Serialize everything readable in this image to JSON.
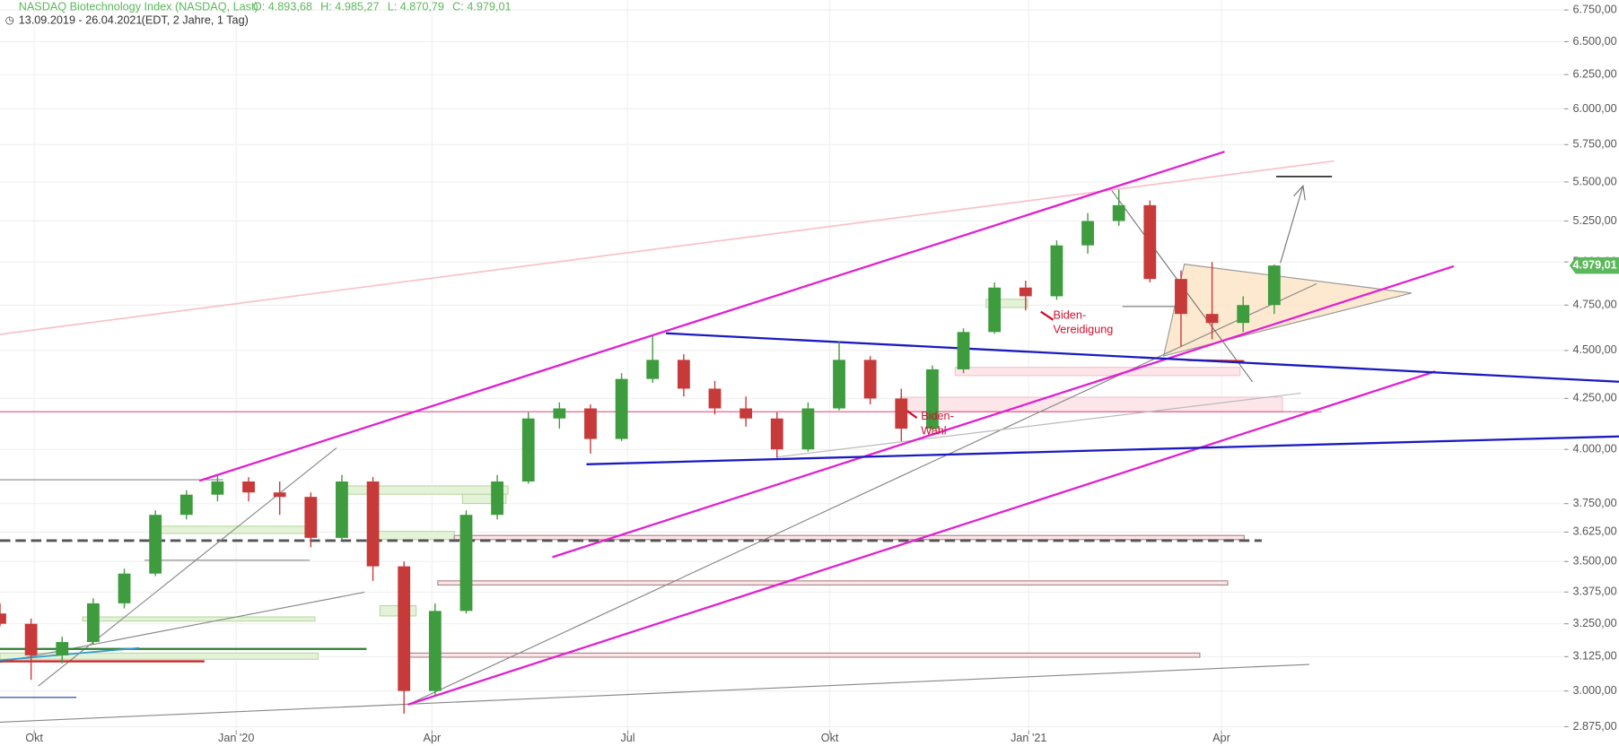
{
  "chart_data": {
    "type": "candlestick",
    "title": "NASDAQ Biotechnology Index (NASDAQ, Last)",
    "ohlc_text": [
      "O: 4.893,68",
      "H: 4.985,27",
      "L: 4.870,79",
      "C: 4.979,01"
    ],
    "range": "13.09.2019 - 26.04.2021",
    "range_note": "(EDT, 2 Jahre, 1 Tag)",
    "log_scale": true,
    "grid": true,
    "up_color": "#3e9b3e",
    "down_color": "#c73a3a",
    "ylim": [
      2810,
      6830
    ],
    "yticks": [
      {
        "value": 6750,
        "label": "6.750,00"
      },
      {
        "value": 6500,
        "label": "6.500,00"
      },
      {
        "value": 6250,
        "label": "6.250,00"
      },
      {
        "value": 6000,
        "label": "6.000,00"
      },
      {
        "value": 5750,
        "label": "5.750,00"
      },
      {
        "value": 5500,
        "label": "5.500,00"
      },
      {
        "value": 5250,
        "label": "5.250,00"
      },
      {
        "value": 5000,
        "label": "5.000,00"
      },
      {
        "value": 4750,
        "label": "4.750,00"
      },
      {
        "value": 4500,
        "label": "4.500,00"
      },
      {
        "value": 4250,
        "label": "4.250,00"
      },
      {
        "value": 4000,
        "label": "4.000,00"
      },
      {
        "value": 3750,
        "label": "3.750,00"
      },
      {
        "value": 3625,
        "label": "3.625,00"
      },
      {
        "value": 3500,
        "label": "3.500,00"
      },
      {
        "value": 3375,
        "label": "3.375,00"
      },
      {
        "value": 3250,
        "label": "3.250,00"
      },
      {
        "value": 3125,
        "label": "3.125,00"
      },
      {
        "value": 3000,
        "label": "3.000,00"
      },
      {
        "value": 2875,
        "label": "2.875,00"
      }
    ],
    "xlim": [
      0,
      50
    ],
    "xticks": [
      {
        "value": 1.1,
        "label": "Okt"
      },
      {
        "value": 7.6,
        "label": "Jan '20"
      },
      {
        "value": 13.9,
        "label": "Apr"
      },
      {
        "value": 20.2,
        "label": "Jul"
      },
      {
        "value": 26.7,
        "label": "Okt"
      },
      {
        "value": 33.1,
        "label": "Jan '21"
      },
      {
        "value": 39.3,
        "label": "Apr"
      }
    ],
    "last_price": {
      "value": 4979.01,
      "label": "4.979,01",
      "color": "#5cb85c"
    },
    "candles": [
      [
        3290,
        3330,
        3240,
        3250
      ],
      [
        3250,
        3270,
        3040,
        3130
      ],
      [
        3130,
        3200,
        3100,
        3180
      ],
      [
        3180,
        3350,
        3170,
        3330
      ],
      [
        3330,
        3470,
        3310,
        3450
      ],
      [
        3450,
        3720,
        3440,
        3700
      ],
      [
        3700,
        3810,
        3680,
        3790
      ],
      [
        3790,
        3880,
        3760,
        3850
      ],
      [
        3850,
        3870,
        3760,
        3800
      ],
      [
        3800,
        3850,
        3700,
        3780
      ],
      [
        3780,
        3800,
        3560,
        3600
      ],
      [
        3600,
        3880,
        3590,
        3850
      ],
      [
        3850,
        3870,
        3420,
        3480
      ],
      [
        3480,
        3500,
        2920,
        3000
      ],
      [
        3000,
        3330,
        2980,
        3300
      ],
      [
        3300,
        3720,
        3290,
        3700
      ],
      [
        3700,
        3880,
        3680,
        3850
      ],
      [
        3850,
        4180,
        3840,
        4150
      ],
      [
        4150,
        4230,
        4100,
        4200
      ],
      [
        4200,
        4220,
        3980,
        4050
      ],
      [
        4050,
        4380,
        4040,
        4350
      ],
      [
        4350,
        4580,
        4330,
        4450
      ],
      [
        4450,
        4480,
        4260,
        4300
      ],
      [
        4300,
        4340,
        4170,
        4200
      ],
      [
        4200,
        4260,
        4110,
        4150
      ],
      [
        4150,
        4180,
        3960,
        4000
      ],
      [
        4000,
        4230,
        3990,
        4200
      ],
      [
        4200,
        4550,
        4190,
        4450
      ],
      [
        4450,
        4470,
        4220,
        4250
      ],
      [
        4250,
        4300,
        4040,
        4100
      ],
      [
        4100,
        4420,
        4090,
        4400
      ],
      [
        4400,
        4620,
        4380,
        4600
      ],
      [
        4600,
        4880,
        4590,
        4850
      ],
      [
        4850,
        4890,
        4720,
        4800
      ],
      [
        4800,
        5130,
        4780,
        5100
      ],
      [
        5100,
        5300,
        5050,
        5250
      ],
      [
        5250,
        5450,
        5220,
        5350
      ],
      [
        5350,
        5380,
        4880,
        4900
      ],
      [
        4900,
        4950,
        4520,
        4700
      ],
      [
        4700,
        5000,
        4560,
        4650
      ],
      [
        4650,
        4800,
        4600,
        4750
      ],
      [
        4750,
        4985,
        4700,
        4979
      ]
    ],
    "annotations": [
      [
        "Biden-",
        "Vereidigung"
      ],
      [
        "Biden-",
        "Wahl"
      ]
    ]
  }
}
